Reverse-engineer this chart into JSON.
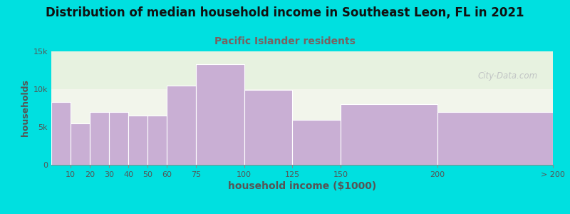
{
  "title": "Distribution of median household income in Southeast Leon, FL in 2021",
  "subtitle": "Pacific Islander residents",
  "xlabel": "household income ($1000)",
  "ylabel": "households",
  "bin_edges": [
    0,
    10,
    20,
    30,
    40,
    50,
    60,
    75,
    100,
    125,
    150,
    200,
    260
  ],
  "tick_positions": [
    10,
    20,
    30,
    40,
    50,
    60,
    75,
    100,
    125,
    150,
    200,
    260
  ],
  "tick_labels": [
    "10",
    "20",
    "30",
    "40",
    "50",
    "60",
    "75",
    "100",
    "125",
    "150",
    "200",
    "> 200"
  ],
  "values": [
    8300,
    5500,
    7000,
    7000,
    6500,
    6500,
    10500,
    13300,
    9900,
    5900,
    8000,
    7000
  ],
  "bar_color": "#c9afd4",
  "bar_edgecolor": "white",
  "bg_outer": "#00e0e0",
  "bg_plot": "#f5f5ee",
  "bg_green_top": "#e2f2db",
  "title_color": "#111111",
  "subtitle_color": "#7a6060",
  "axis_label_color": "#555555",
  "tick_color": "#555555",
  "ylim": [
    0,
    15000
  ],
  "yticks": [
    0,
    5000,
    10000,
    15000
  ],
  "ytick_labels": [
    "0",
    "5k",
    "10k",
    "15k"
  ],
  "watermark": "City-Data.com",
  "title_fontsize": 12,
  "subtitle_fontsize": 10,
  "xlabel_fontsize": 10,
  "ylabel_fontsize": 9
}
